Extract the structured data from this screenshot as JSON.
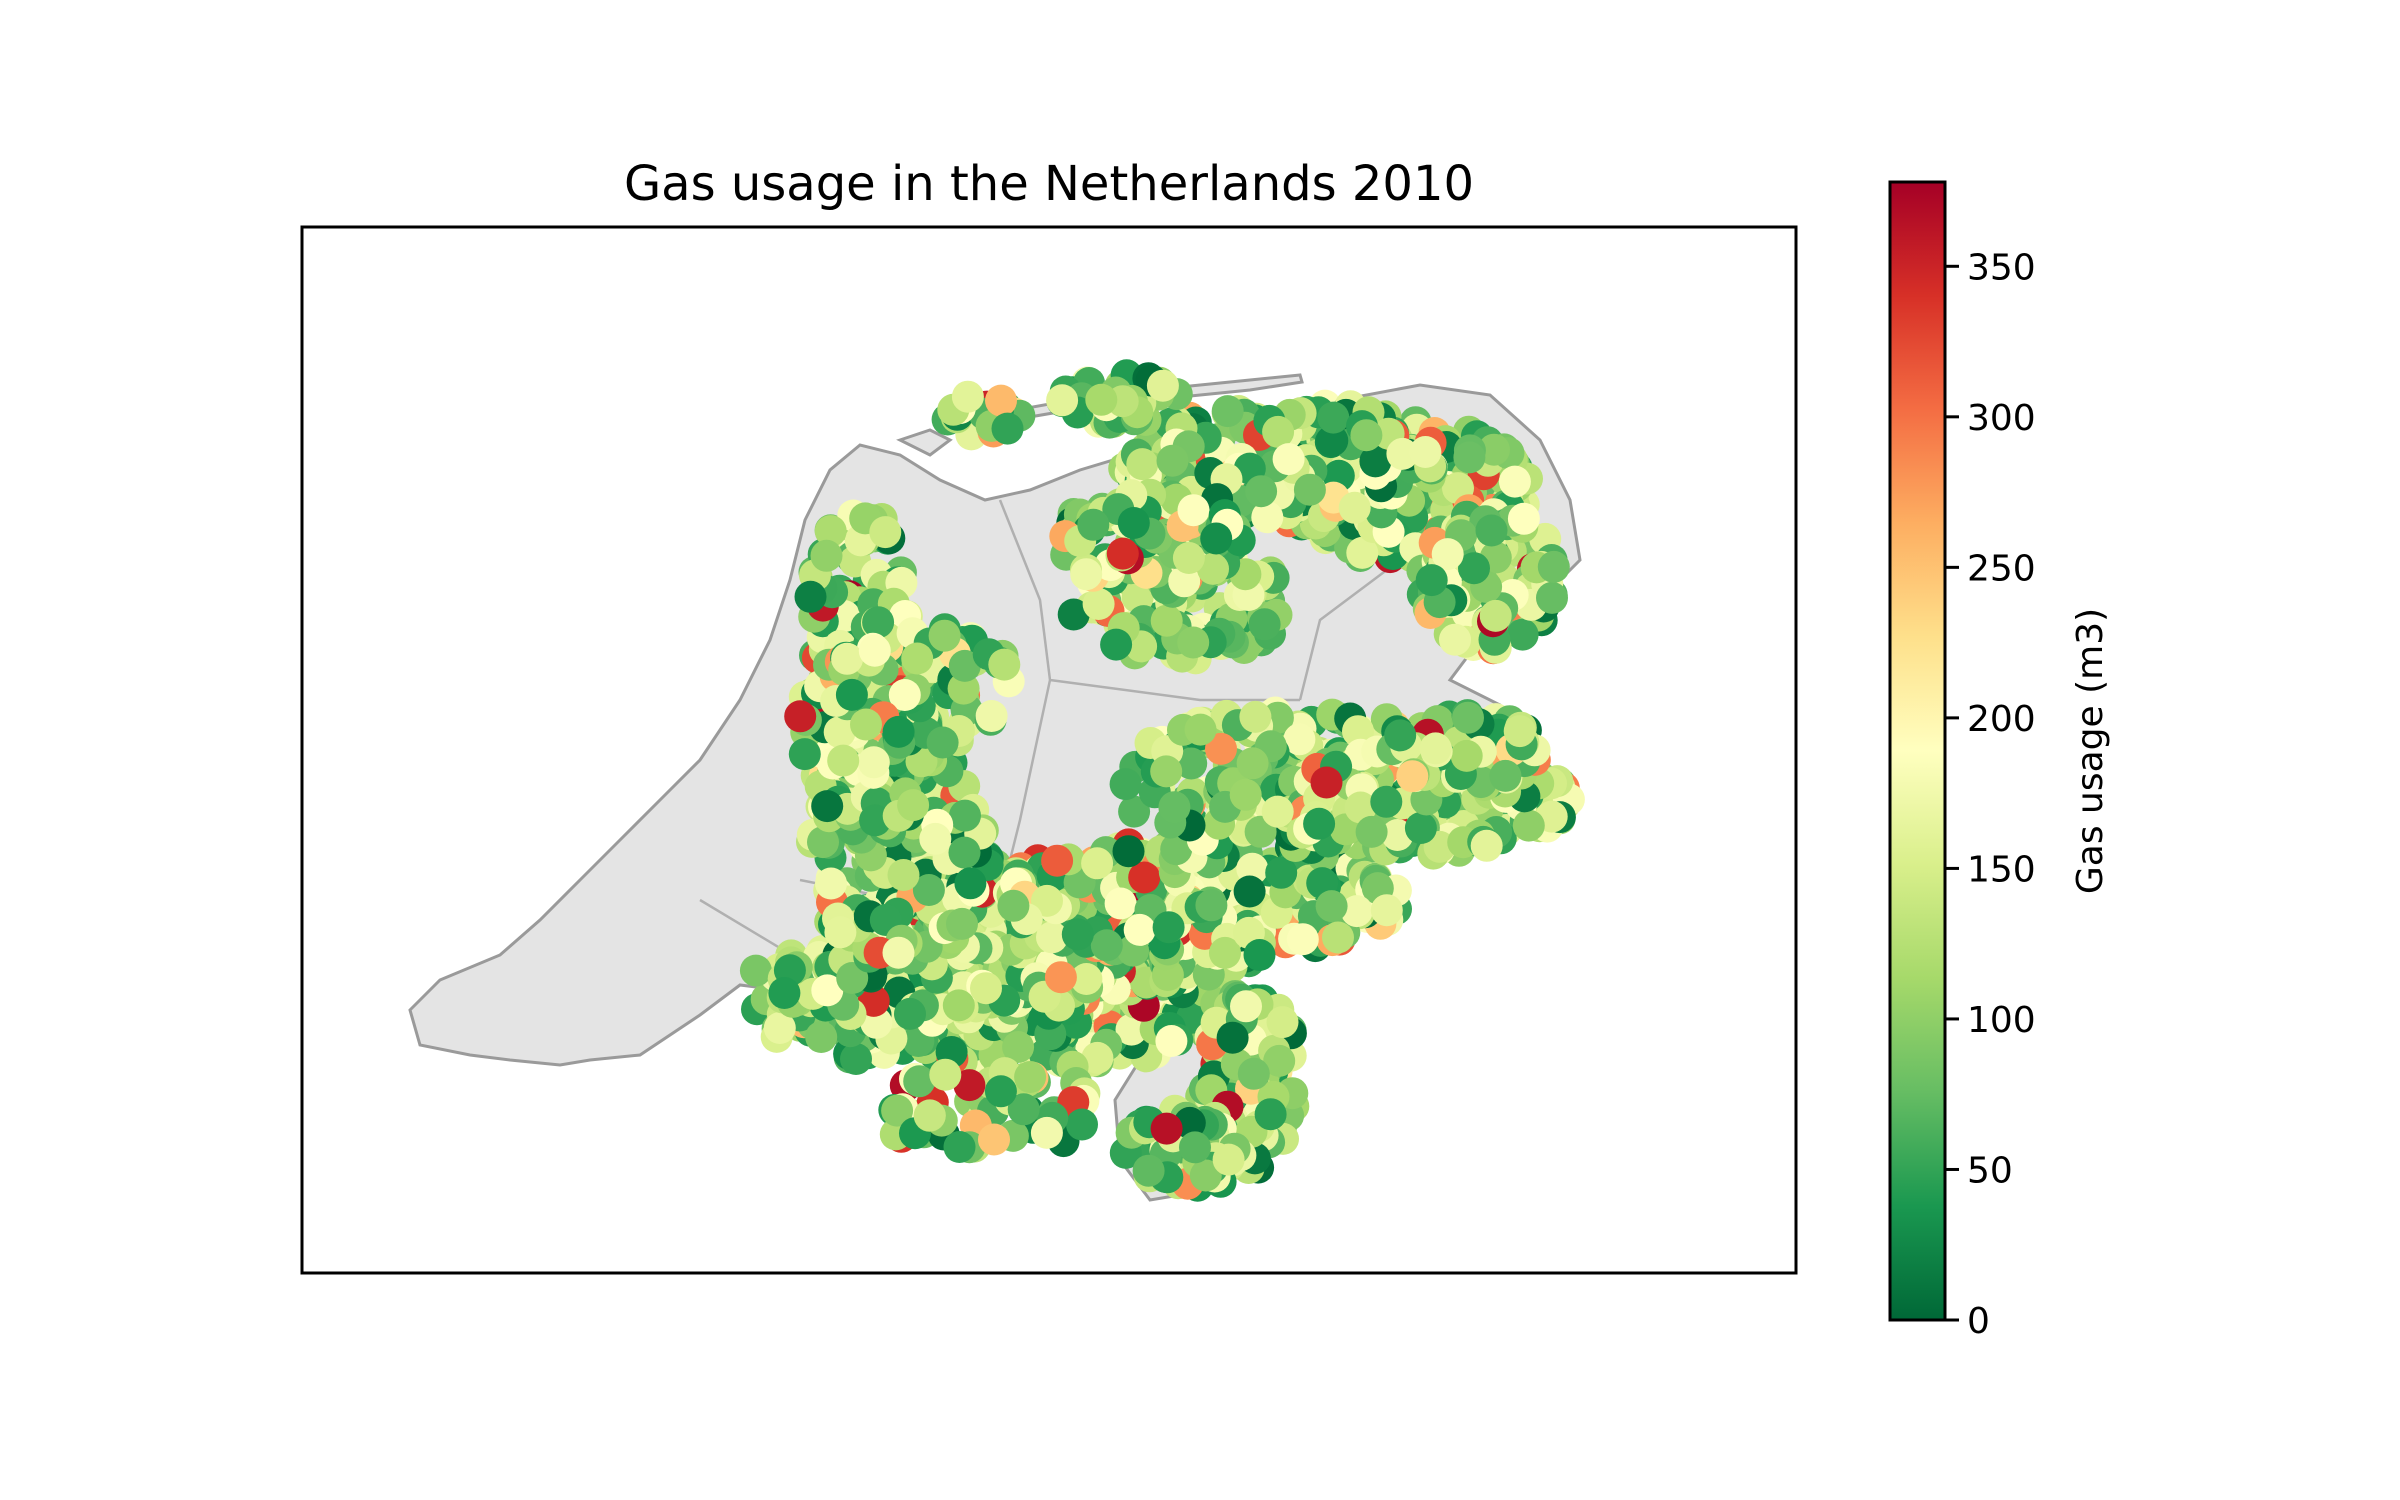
{
  "chart_data": {
    "type": "map-scatter",
    "title": "Gas usage in the Netherlands 2010",
    "region": "Netherlands",
    "basemap_fill": "#e4e4e4",
    "basemap_stroke": "#9a9a9a",
    "colormap": "RdYlGn_r",
    "colormap_stops": [
      "#006837",
      "#1a9850",
      "#66bd63",
      "#a6d96a",
      "#d9ef8b",
      "#ffffbf",
      "#fee08b",
      "#fdae61",
      "#f46d43",
      "#d73027",
      "#a50026"
    ],
    "colorbar": {
      "label": "Gas usage (m3)",
      "min": 0,
      "max": 378,
      "ticks": [
        0,
        50,
        100,
        150,
        200,
        250,
        300,
        350
      ],
      "tick_labels": [
        "0",
        "50",
        "100",
        "150",
        "200",
        "250",
        "300",
        "350"
      ]
    },
    "value_distribution": {
      "typical_range": [
        50,
        200
      ],
      "max_observed": 378
    },
    "grid": false,
    "legend": "colorbar-right"
  }
}
